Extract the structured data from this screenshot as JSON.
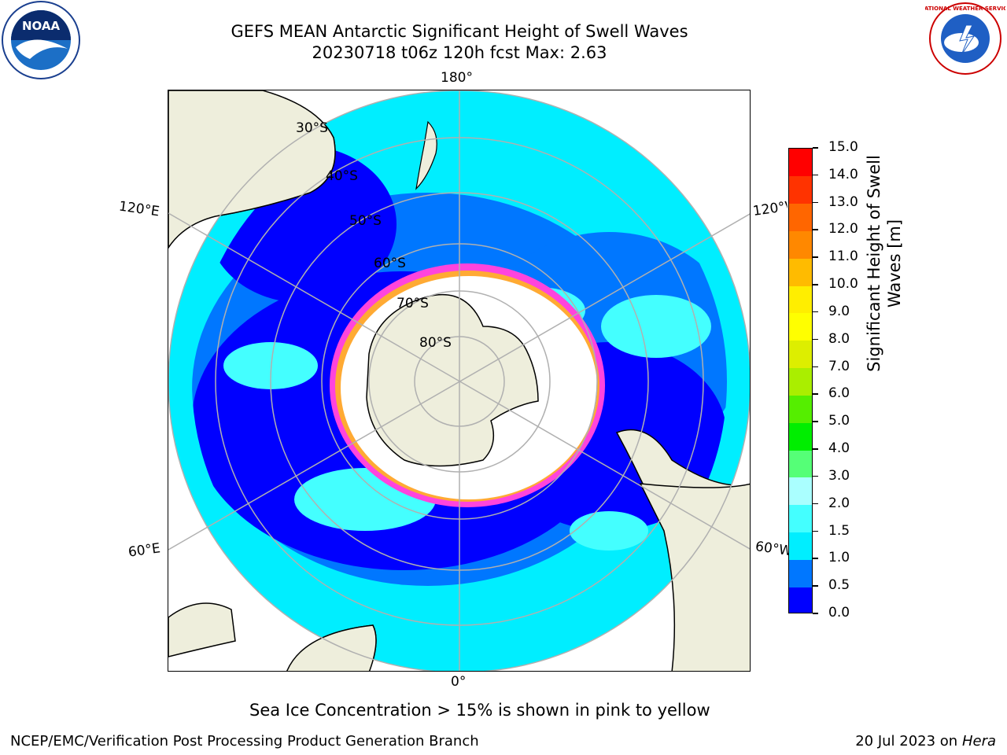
{
  "header": {
    "title_line1": "GEFS MEAN Antarctic Significant Height of Swell Waves",
    "title_line2": "20230718 t06z 120h fcst   Max: 2.63"
  },
  "logos": {
    "left": "NOAA",
    "right": "NATIONAL WEATHER SERVICE"
  },
  "map": {
    "projection": "south-polar-stereographic",
    "lon_labels": {
      "top": "180°",
      "bottom": "0°",
      "upper_left": "120°E",
      "lower_left": "60°E",
      "upper_right": "120°W",
      "lower_right": "60°W"
    },
    "lat_labels": [
      "30°S",
      "40°S",
      "50°S",
      "60°S",
      "70°S",
      "80°S"
    ],
    "colors": {
      "land": "#eeeedc",
      "ice_edge": "#ff44dd",
      "no_data": "#ffffff"
    }
  },
  "colorbar": {
    "label_line1": "Significant Height of Swell",
    "label_line2": "Waves [m]",
    "ticks": [
      "0.0",
      "0.5",
      "1.0",
      "1.5",
      "2.0",
      "3.0",
      "4.0",
      "5.0",
      "6.0",
      "7.0",
      "8.0",
      "9.0",
      "10.0",
      "11.0",
      "12.0",
      "13.0",
      "14.0",
      "15.0"
    ],
    "colors": [
      "#0000ff",
      "#0077ff",
      "#00eeff",
      "#44ffff",
      "#aaffff",
      "#55ff77",
      "#00ee00",
      "#55ee00",
      "#aaee00",
      "#ddee00",
      "#ffff00",
      "#ffee00",
      "#ffbb00",
      "#ff8800",
      "#ff6600",
      "#ff3300",
      "#ff0000"
    ]
  },
  "note": "Sea Ice Concentration > 15% is shown in pink to yellow",
  "footer": {
    "left": "NCEP/EMC/Verification Post Processing Product Generation Branch",
    "right_date": "20 Jul 2023 on ",
    "right_host": "Hera"
  }
}
